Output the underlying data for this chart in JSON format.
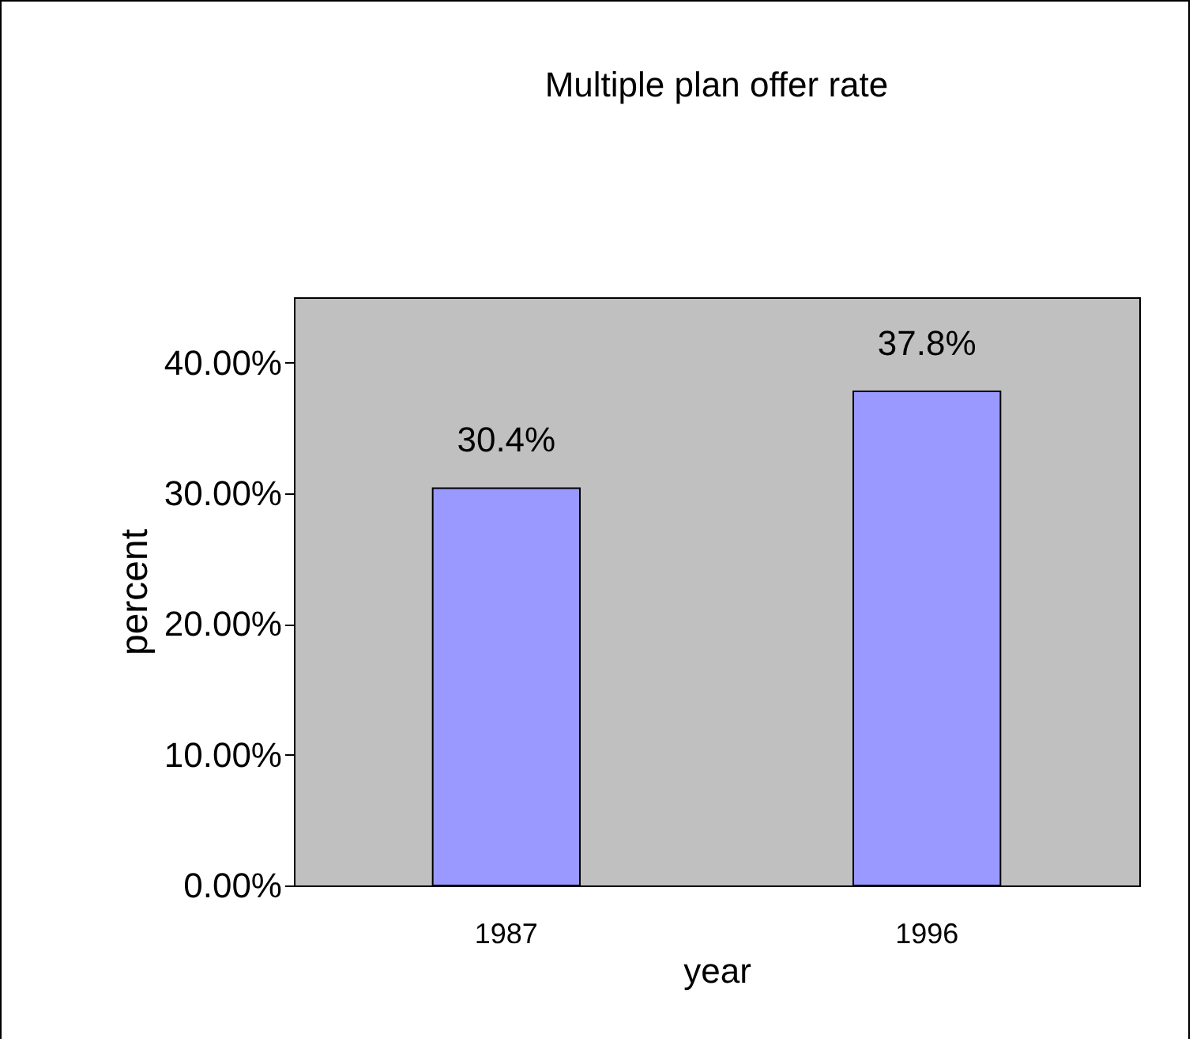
{
  "chart_data": {
    "type": "bar",
    "title": "Multiple plan offer rate",
    "xlabel": "year",
    "ylabel": "percent",
    "categories": [
      "1987",
      "1996"
    ],
    "values": [
      30.4,
      37.8
    ],
    "value_labels": [
      "30.4%",
      "37.8%"
    ],
    "color": "#9999ff",
    "ylim": [
      0,
      45
    ],
    "yticks": [
      {
        "value": 0,
        "label": "0.00%"
      },
      {
        "value": 10,
        "label": "10.00%"
      },
      {
        "value": 20,
        "label": "20.00%"
      },
      {
        "value": 30,
        "label": "30.00%"
      },
      {
        "value": 40,
        "label": "40.00%"
      }
    ]
  }
}
